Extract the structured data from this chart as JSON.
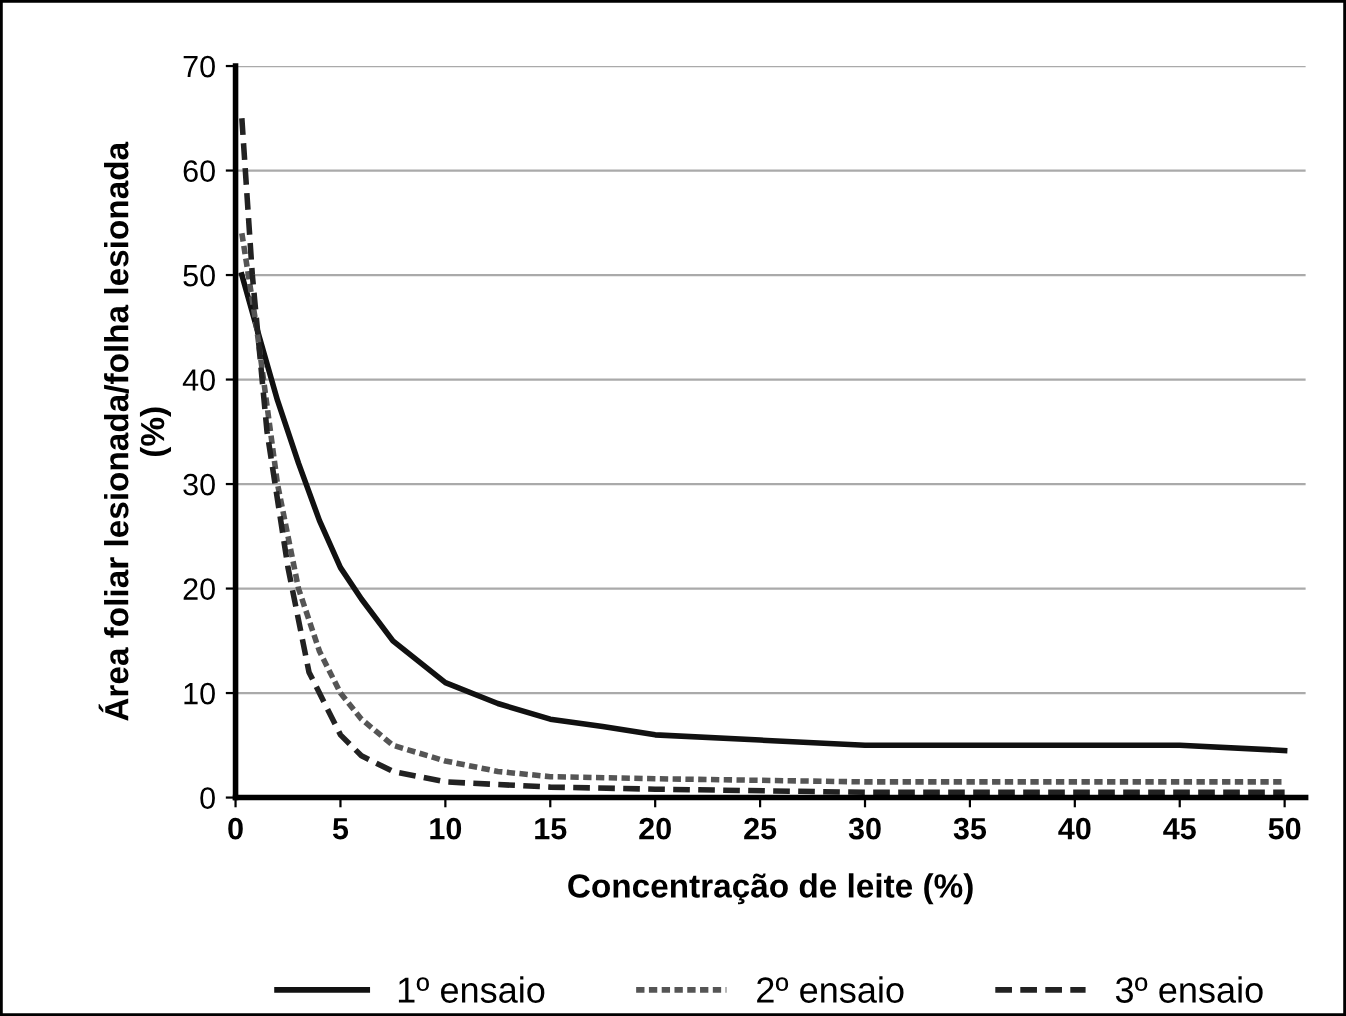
{
  "chart_data": {
    "type": "line",
    "xlabel": "Concentração de leite (%)",
    "ylabel": "Área foliar lesionada/folha lesionada\n(%)",
    "xlim": [
      0,
      51
    ],
    "xticks": [
      0,
      5,
      10,
      15,
      20,
      25,
      30,
      35,
      40,
      45,
      50
    ],
    "ylim": [
      0,
      70
    ],
    "yticks": [
      0,
      10,
      20,
      30,
      40,
      50,
      60,
      70
    ],
    "grid": "y",
    "legend": "bottom",
    "series": [
      {
        "name": "1º ensaio",
        "color": "#111111",
        "line_style": "solid",
        "x": [
          0.3,
          1,
          2,
          3,
          4,
          5,
          6,
          7.5,
          10,
          12.5,
          15,
          17.5,
          20,
          25,
          30,
          35,
          40,
          45,
          50
        ],
        "values": [
          50,
          45,
          38,
          32,
          26.5,
          22,
          19,
          15,
          11,
          9,
          7.5,
          6.8,
          6,
          5.5,
          5,
          5,
          5,
          5,
          4.5
        ]
      },
      {
        "name": "2º ensaio",
        "color": "#555555",
        "line_style": "dotted",
        "x": [
          0.3,
          1,
          2,
          3,
          4,
          5,
          6,
          7.5,
          10,
          12.5,
          15,
          20,
          30,
          40,
          50
        ],
        "values": [
          54,
          45,
          30,
          20,
          14,
          10,
          7.5,
          5,
          3.5,
          2.5,
          2,
          1.8,
          1.5,
          1.5,
          1.5
        ]
      },
      {
        "name": "3º ensaio",
        "color": "#222222",
        "line_style": "dashed",
        "x": [
          0.3,
          0.8,
          1.5,
          2.5,
          3.5,
          5,
          6,
          7.5,
          10,
          15,
          20,
          30,
          40,
          50
        ],
        "values": [
          65,
          50,
          35,
          22,
          12,
          6,
          4,
          2.5,
          1.5,
          1,
          0.8,
          0.5,
          0.5,
          0.5
        ]
      }
    ]
  }
}
